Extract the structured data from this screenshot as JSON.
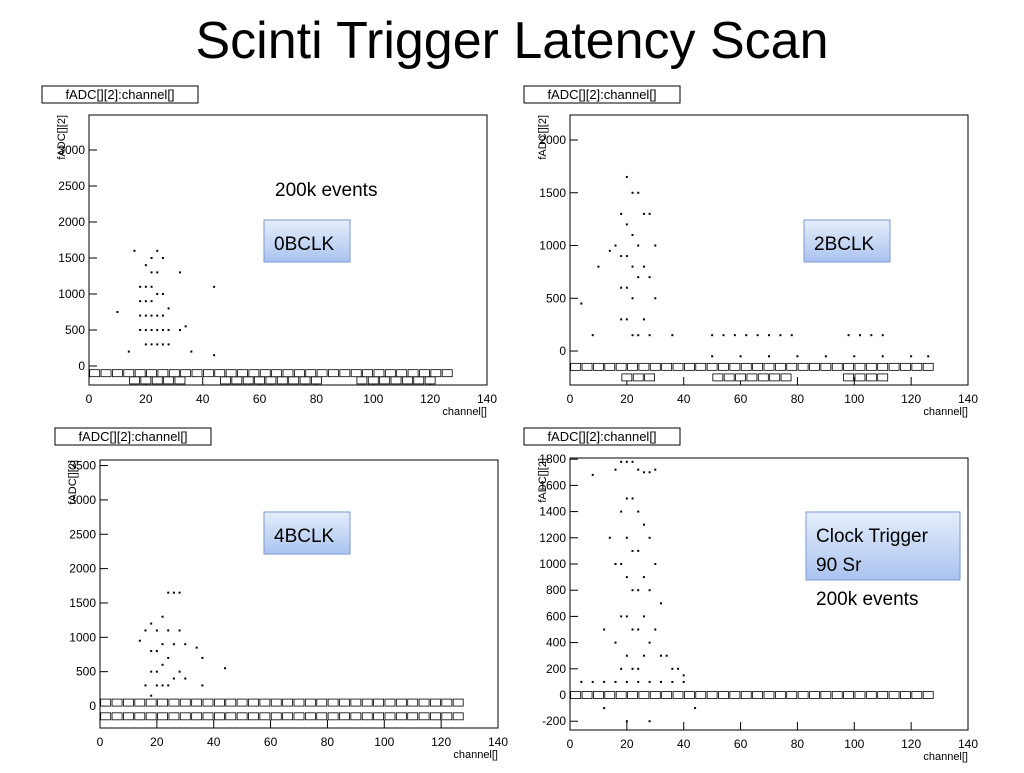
{
  "title": "Scinti Trigger Latency Scan",
  "chart_data": [
    {
      "type": "scatter",
      "header": "fADC[][2]:channel[]",
      "xlabel": "channel[]",
      "ylabel": "fADC[][2]",
      "label_box": [
        "0BCLK"
      ],
      "note": "200k events",
      "xlim": [
        0,
        140
      ],
      "xticks": [
        0,
        20,
        40,
        60,
        80,
        100,
        120,
        140
      ],
      "ylim": [
        -264,
        3486
      ],
      "yticks": [
        0,
        500,
        1000,
        1500,
        2000,
        2500,
        3000
      ],
      "points": {
        "x": [
          16,
          18,
          18,
          18,
          18,
          20,
          20,
          20,
          20,
          20,
          20,
          22,
          22,
          22,
          22,
          22,
          22,
          22,
          24,
          24,
          24,
          24,
          24,
          24,
          26,
          26,
          26,
          26,
          26,
          28,
          28,
          28,
          32,
          32,
          10,
          14,
          44,
          44,
          34,
          36
        ],
        "y": [
          1600,
          1100,
          900,
          700,
          500,
          1400,
          1100,
          900,
          700,
          500,
          300,
          1500,
          1300,
          1100,
          900,
          700,
          500,
          300,
          1600,
          1300,
          1000,
          700,
          500,
          300,
          1500,
          1000,
          700,
          500,
          300,
          800,
          500,
          300,
          1300,
          500,
          750,
          200,
          1100,
          150,
          550,
          200
        ]
      },
      "boxes": {
        "x": [
          2,
          6,
          10,
          14,
          18,
          22,
          26,
          30,
          34,
          38,
          42,
          46,
          50,
          54,
          58,
          62,
          66,
          70,
          74,
          78,
          82,
          86,
          90,
          94,
          98,
          102,
          106,
          110,
          114,
          118,
          122,
          126,
          16,
          20,
          24,
          28,
          32,
          48,
          52,
          56,
          60,
          64,
          68,
          72,
          76,
          80,
          96,
          100,
          104,
          108,
          112,
          116,
          120
        ],
        "y": [
          -100,
          -100,
          -100,
          -100,
          -100,
          -100,
          -100,
          -100,
          -100,
          -100,
          -100,
          -100,
          -100,
          -100,
          -100,
          -100,
          -100,
          -100,
          -100,
          -100,
          -100,
          -100,
          -100,
          -100,
          -100,
          -100,
          -100,
          -100,
          -100,
          -100,
          -100,
          -100,
          -200,
          -200,
          -200,
          -200,
          -200,
          -200,
          -200,
          -200,
          -200,
          -200,
          -200,
          -200,
          -200,
          -200,
          -200,
          -200,
          -200,
          -200,
          -200,
          -200,
          -200
        ]
      }
    },
    {
      "type": "scatter",
      "header": "fADC[][2]:channel[]",
      "xlabel": "channel[]",
      "ylabel": "fADC[][2]",
      "label_box": [
        "2BCLK"
      ],
      "xlim": [
        0,
        140
      ],
      "xticks": [
        0,
        20,
        40,
        60,
        80,
        100,
        120,
        140
      ],
      "ylim": [
        -322,
        2237
      ],
      "yticks": [
        0,
        500,
        1000,
        1500,
        2000
      ],
      "points": {
        "x": [
          10,
          14,
          16,
          18,
          18,
          18,
          18,
          20,
          20,
          20,
          20,
          20,
          22,
          22,
          22,
          22,
          22,
          24,
          24,
          24,
          24,
          26,
          26,
          26,
          28,
          28,
          28,
          30,
          30,
          4,
          8,
          36,
          50,
          54,
          58,
          62,
          66,
          70,
          74,
          78,
          98,
          102,
          106,
          110,
          50,
          60,
          70,
          80,
          90,
          100,
          110,
          120,
          126
        ],
        "y": [
          800,
          950,
          1000,
          1300,
          900,
          600,
          300,
          1650,
          1200,
          900,
          600,
          300,
          1500,
          1100,
          800,
          500,
          150,
          1500,
          1000,
          700,
          150,
          1300,
          800,
          300,
          1300,
          700,
          150,
          1000,
          500,
          450,
          150,
          150,
          150,
          150,
          150,
          150,
          150,
          150,
          150,
          150,
          150,
          150,
          150,
          150,
          -50,
          -50,
          -50,
          -50,
          -50,
          -50,
          -50,
          -50,
          -50
        ]
      },
      "boxes": {
        "x": [
          2,
          6,
          10,
          14,
          18,
          22,
          26,
          30,
          34,
          38,
          42,
          46,
          50,
          54,
          58,
          62,
          66,
          70,
          74,
          78,
          82,
          86,
          90,
          94,
          98,
          102,
          106,
          110,
          114,
          118,
          122,
          126,
          20,
          24,
          28,
          52,
          56,
          60,
          64,
          68,
          72,
          76,
          98,
          102,
          106,
          110
        ],
        "y": [
          -150,
          -150,
          -150,
          -150,
          -150,
          -150,
          -150,
          -150,
          -150,
          -150,
          -150,
          -150,
          -150,
          -150,
          -150,
          -150,
          -150,
          -150,
          -150,
          -150,
          -150,
          -150,
          -150,
          -150,
          -150,
          -150,
          -150,
          -150,
          -150,
          -150,
          -150,
          -150,
          -250,
          -250,
          -250,
          -250,
          -250,
          -250,
          -250,
          -250,
          -250,
          -250,
          -250,
          -250,
          -250,
          -250
        ]
      }
    },
    {
      "type": "scatter",
      "header": "fADC[][2]:channel[]",
      "xlabel": "channel[]",
      "ylabel": "fADC[][2]",
      "label_box": [
        "4BCLK"
      ],
      "xlim": [
        0,
        140
      ],
      "xticks": [
        0,
        20,
        40,
        60,
        80,
        100,
        120,
        140
      ],
      "ylim": [
        -320,
        3581
      ],
      "yticks": [
        0,
        500,
        1000,
        1500,
        2000,
        2500,
        3000,
        3500
      ],
      "points": {
        "x": [
          14,
          16,
          18,
          18,
          18,
          20,
          20,
          20,
          20,
          22,
          22,
          22,
          22,
          24,
          24,
          24,
          24,
          26,
          26,
          26,
          28,
          28,
          28,
          30,
          30,
          34,
          36,
          36,
          44,
          16,
          18
        ],
        "y": [
          950,
          1100,
          1200,
          800,
          500,
          1100,
          800,
          500,
          300,
          1300,
          900,
          600,
          300,
          1650,
          1100,
          700,
          300,
          1650,
          900,
          400,
          1650,
          1100,
          500,
          900,
          400,
          850,
          700,
          300,
          550,
          300,
          150
        ]
      },
      "boxes": {
        "x": [
          2,
          6,
          10,
          14,
          18,
          22,
          26,
          30,
          34,
          38,
          42,
          46,
          50,
          54,
          58,
          62,
          66,
          70,
          74,
          78,
          82,
          86,
          90,
          94,
          98,
          102,
          106,
          110,
          114,
          118,
          122,
          126,
          2,
          6,
          10,
          14,
          18,
          22,
          26,
          30,
          34,
          38,
          42,
          46,
          50,
          54,
          58,
          62,
          66,
          70,
          74,
          78,
          82,
          86,
          90,
          94,
          98,
          102,
          106,
          110,
          114,
          118,
          122,
          126
        ],
        "y": [
          50,
          50,
          50,
          50,
          50,
          50,
          50,
          50,
          50,
          50,
          50,
          50,
          50,
          50,
          50,
          50,
          50,
          50,
          50,
          50,
          50,
          50,
          50,
          50,
          50,
          50,
          50,
          50,
          50,
          50,
          50,
          50,
          -150,
          -150,
          -150,
          -150,
          -150,
          -150,
          -150,
          -150,
          -150,
          -150,
          -150,
          -150,
          -150,
          -150,
          -150,
          -150,
          -150,
          -150,
          -150,
          -150,
          -150,
          -150,
          -150,
          -150,
          -150,
          -150,
          -150,
          -150,
          -150,
          -150,
          -150,
          -150
        ]
      }
    },
    {
      "type": "scatter",
      "header": "fADC[][2]:channel[]",
      "xlabel": "channel[]",
      "ylabel": "fADC[][2]",
      "label_box": [
        "Clock Trigger",
        "90 Sr"
      ],
      "note": "200k events",
      "xlim": [
        0,
        140
      ],
      "xticks": [
        0,
        20,
        40,
        60,
        80,
        100,
        120,
        140
      ],
      "ylim": [
        -267,
        1809
      ],
      "yticks": [
        -200,
        0,
        200,
        400,
        600,
        800,
        1000,
        1200,
        1400,
        1600,
        1800
      ],
      "points": {
        "x": [
          8,
          12,
          14,
          16,
          16,
          16,
          18,
          18,
          18,
          18,
          18,
          20,
          20,
          20,
          20,
          20,
          20,
          22,
          22,
          22,
          22,
          22,
          22,
          24,
          24,
          24,
          24,
          24,
          24,
          26,
          26,
          26,
          26,
          26,
          28,
          28,
          28,
          28,
          30,
          30,
          30,
          32,
          32,
          34,
          36,
          38,
          40,
          4,
          8,
          12,
          16,
          20,
          24,
          28,
          32,
          36,
          40,
          44,
          12,
          20,
          28
        ],
        "y": [
          1680,
          500,
          1200,
          1720,
          1000,
          400,
          1780,
          1400,
          1000,
          600,
          200,
          1780,
          1500,
          1200,
          900,
          600,
          300,
          1780,
          1500,
          1100,
          800,
          500,
          200,
          1720,
          1400,
          1100,
          800,
          500,
          200,
          1700,
          1300,
          900,
          600,
          300,
          1700,
          1200,
          800,
          400,
          1720,
          1000,
          500,
          700,
          300,
          300,
          200,
          200,
          150,
          100,
          100,
          100,
          100,
          100,
          100,
          100,
          100,
          100,
          100,
          -100,
          -100,
          -200,
          -200
        ]
      },
      "boxes": {
        "x": [
          2,
          6,
          10,
          14,
          18,
          22,
          26,
          30,
          34,
          38,
          42,
          46,
          50,
          54,
          58,
          62,
          66,
          70,
          74,
          78,
          82,
          86,
          90,
          94,
          98,
          102,
          106,
          110,
          114,
          118,
          122,
          126
        ],
        "y": [
          0,
          0,
          0,
          0,
          0,
          0,
          0,
          0,
          0,
          0,
          0,
          0,
          0,
          0,
          0,
          0,
          0,
          0,
          0,
          0,
          0,
          0,
          0,
          0,
          0,
          0,
          0,
          0,
          0,
          0,
          0,
          0
        ]
      }
    }
  ]
}
